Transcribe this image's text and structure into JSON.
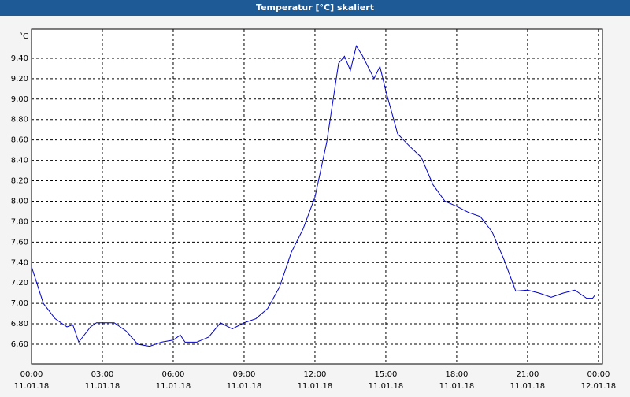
{
  "chart_data": {
    "type": "line",
    "title": "Temperatur [°C] skaliert",
    "y_unit": "°C",
    "x": [
      0,
      0.5,
      1,
      1.5,
      1.75,
      2,
      2.5,
      2.75,
      3,
      3.5,
      4,
      4.5,
      5,
      5.5,
      6,
      6.3,
      6.5,
      7,
      7.5,
      8,
      8.5,
      9,
      9.5,
      10,
      10.5,
      11,
      11.5,
      12,
      12.5,
      13,
      13.25,
      13.5,
      13.75,
      14,
      14.5,
      14.75,
      15,
      15.5,
      16,
      16.5,
      17,
      17.5,
      18,
      18.5,
      19,
      19.5,
      20,
      20.5,
      21,
      21.5,
      22,
      22.5,
      23,
      23.5,
      23.75,
      23.85
    ],
    "series": [
      {
        "name": "Temperatur",
        "color": "#0000c8",
        "values": [
          7.36,
          7.0,
          6.85,
          6.77,
          6.79,
          6.62,
          6.77,
          6.81,
          6.81,
          6.81,
          6.73,
          6.6,
          6.58,
          6.62,
          6.64,
          6.69,
          6.62,
          6.62,
          6.67,
          6.81,
          6.75,
          6.81,
          6.85,
          6.95,
          7.16,
          7.5,
          7.73,
          8.04,
          8.58,
          9.35,
          9.42,
          9.28,
          9.52,
          9.43,
          9.2,
          9.32,
          9.08,
          8.66,
          8.54,
          8.43,
          8.16,
          8.0,
          7.95,
          7.89,
          7.85,
          7.7,
          7.43,
          7.12,
          7.13,
          7.1,
          7.06,
          7.1,
          7.13,
          7.05,
          7.05,
          7.08
        ]
      }
    ],
    "xlim": [
      0,
      24.17
    ],
    "ylim": [
      6.407,
      9.685
    ],
    "xticks": [
      {
        "value": 0,
        "label": "00:00",
        "date": "11.01.18"
      },
      {
        "value": 3,
        "label": "03:00",
        "date": "11.01.18"
      },
      {
        "value": 6,
        "label": "06:00",
        "date": "11.01.18"
      },
      {
        "value": 9,
        "label": "09:00",
        "date": "11.01.18"
      },
      {
        "value": 12,
        "label": "12:00",
        "date": "11.01.18"
      },
      {
        "value": 15,
        "label": "15:00",
        "date": "11.01.18"
      },
      {
        "value": 18,
        "label": "18:00",
        "date": "11.01.18"
      },
      {
        "value": 21,
        "label": "21:00",
        "date": "11.01.18"
      },
      {
        "value": 24,
        "label": "00:00",
        "date": "12.01.18"
      }
    ],
    "yticks": [
      {
        "value": 6.6,
        "label": "6,60"
      },
      {
        "value": 6.8,
        "label": "6,80"
      },
      {
        "value": 7.0,
        "label": "7,00"
      },
      {
        "value": 7.2,
        "label": "7,20"
      },
      {
        "value": 7.4,
        "label": "7,40"
      },
      {
        "value": 7.6,
        "label": "7,60"
      },
      {
        "value": 7.8,
        "label": "7,80"
      },
      {
        "value": 8.0,
        "label": "8,00"
      },
      {
        "value": 8.2,
        "label": "8,20"
      },
      {
        "value": 8.4,
        "label": "8,40"
      },
      {
        "value": 8.6,
        "label": "8,60"
      },
      {
        "value": 8.8,
        "label": "8,80"
      },
      {
        "value": 9.0,
        "label": "9,00"
      },
      {
        "value": 9.2,
        "label": "9,20"
      },
      {
        "value": 9.4,
        "label": "9,40"
      }
    ],
    "grid": true
  }
}
